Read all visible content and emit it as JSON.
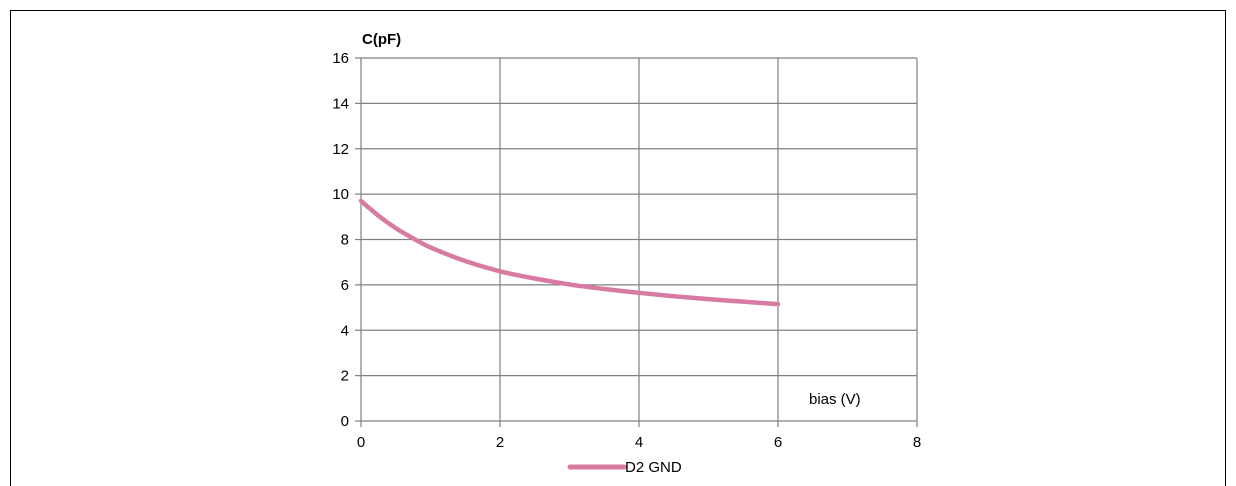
{
  "chart_data": {
    "type": "line",
    "title": "",
    "xlabel": "bias (V)",
    "ylabel": "C(pF)",
    "xlim": [
      0,
      8
    ],
    "ylim": [
      0,
      16
    ],
    "xticks": [
      0,
      2,
      4,
      6,
      8
    ],
    "yticks": [
      0,
      2,
      4,
      6,
      8,
      10,
      12,
      14,
      16
    ],
    "grid": true,
    "legend_position": "bottom",
    "series": [
      {
        "name": "D2 GND",
        "color": "#d87ba0",
        "x": [
          0,
          0.25,
          0.5,
          0.75,
          1,
          1.5,
          2,
          2.5,
          3,
          3.5,
          4,
          4.5,
          5,
          5.5,
          6
        ],
        "y": [
          9.7,
          9.05,
          8.5,
          8.05,
          7.65,
          7.05,
          6.6,
          6.28,
          6.02,
          5.82,
          5.65,
          5.5,
          5.37,
          5.26,
          5.15
        ]
      }
    ]
  }
}
